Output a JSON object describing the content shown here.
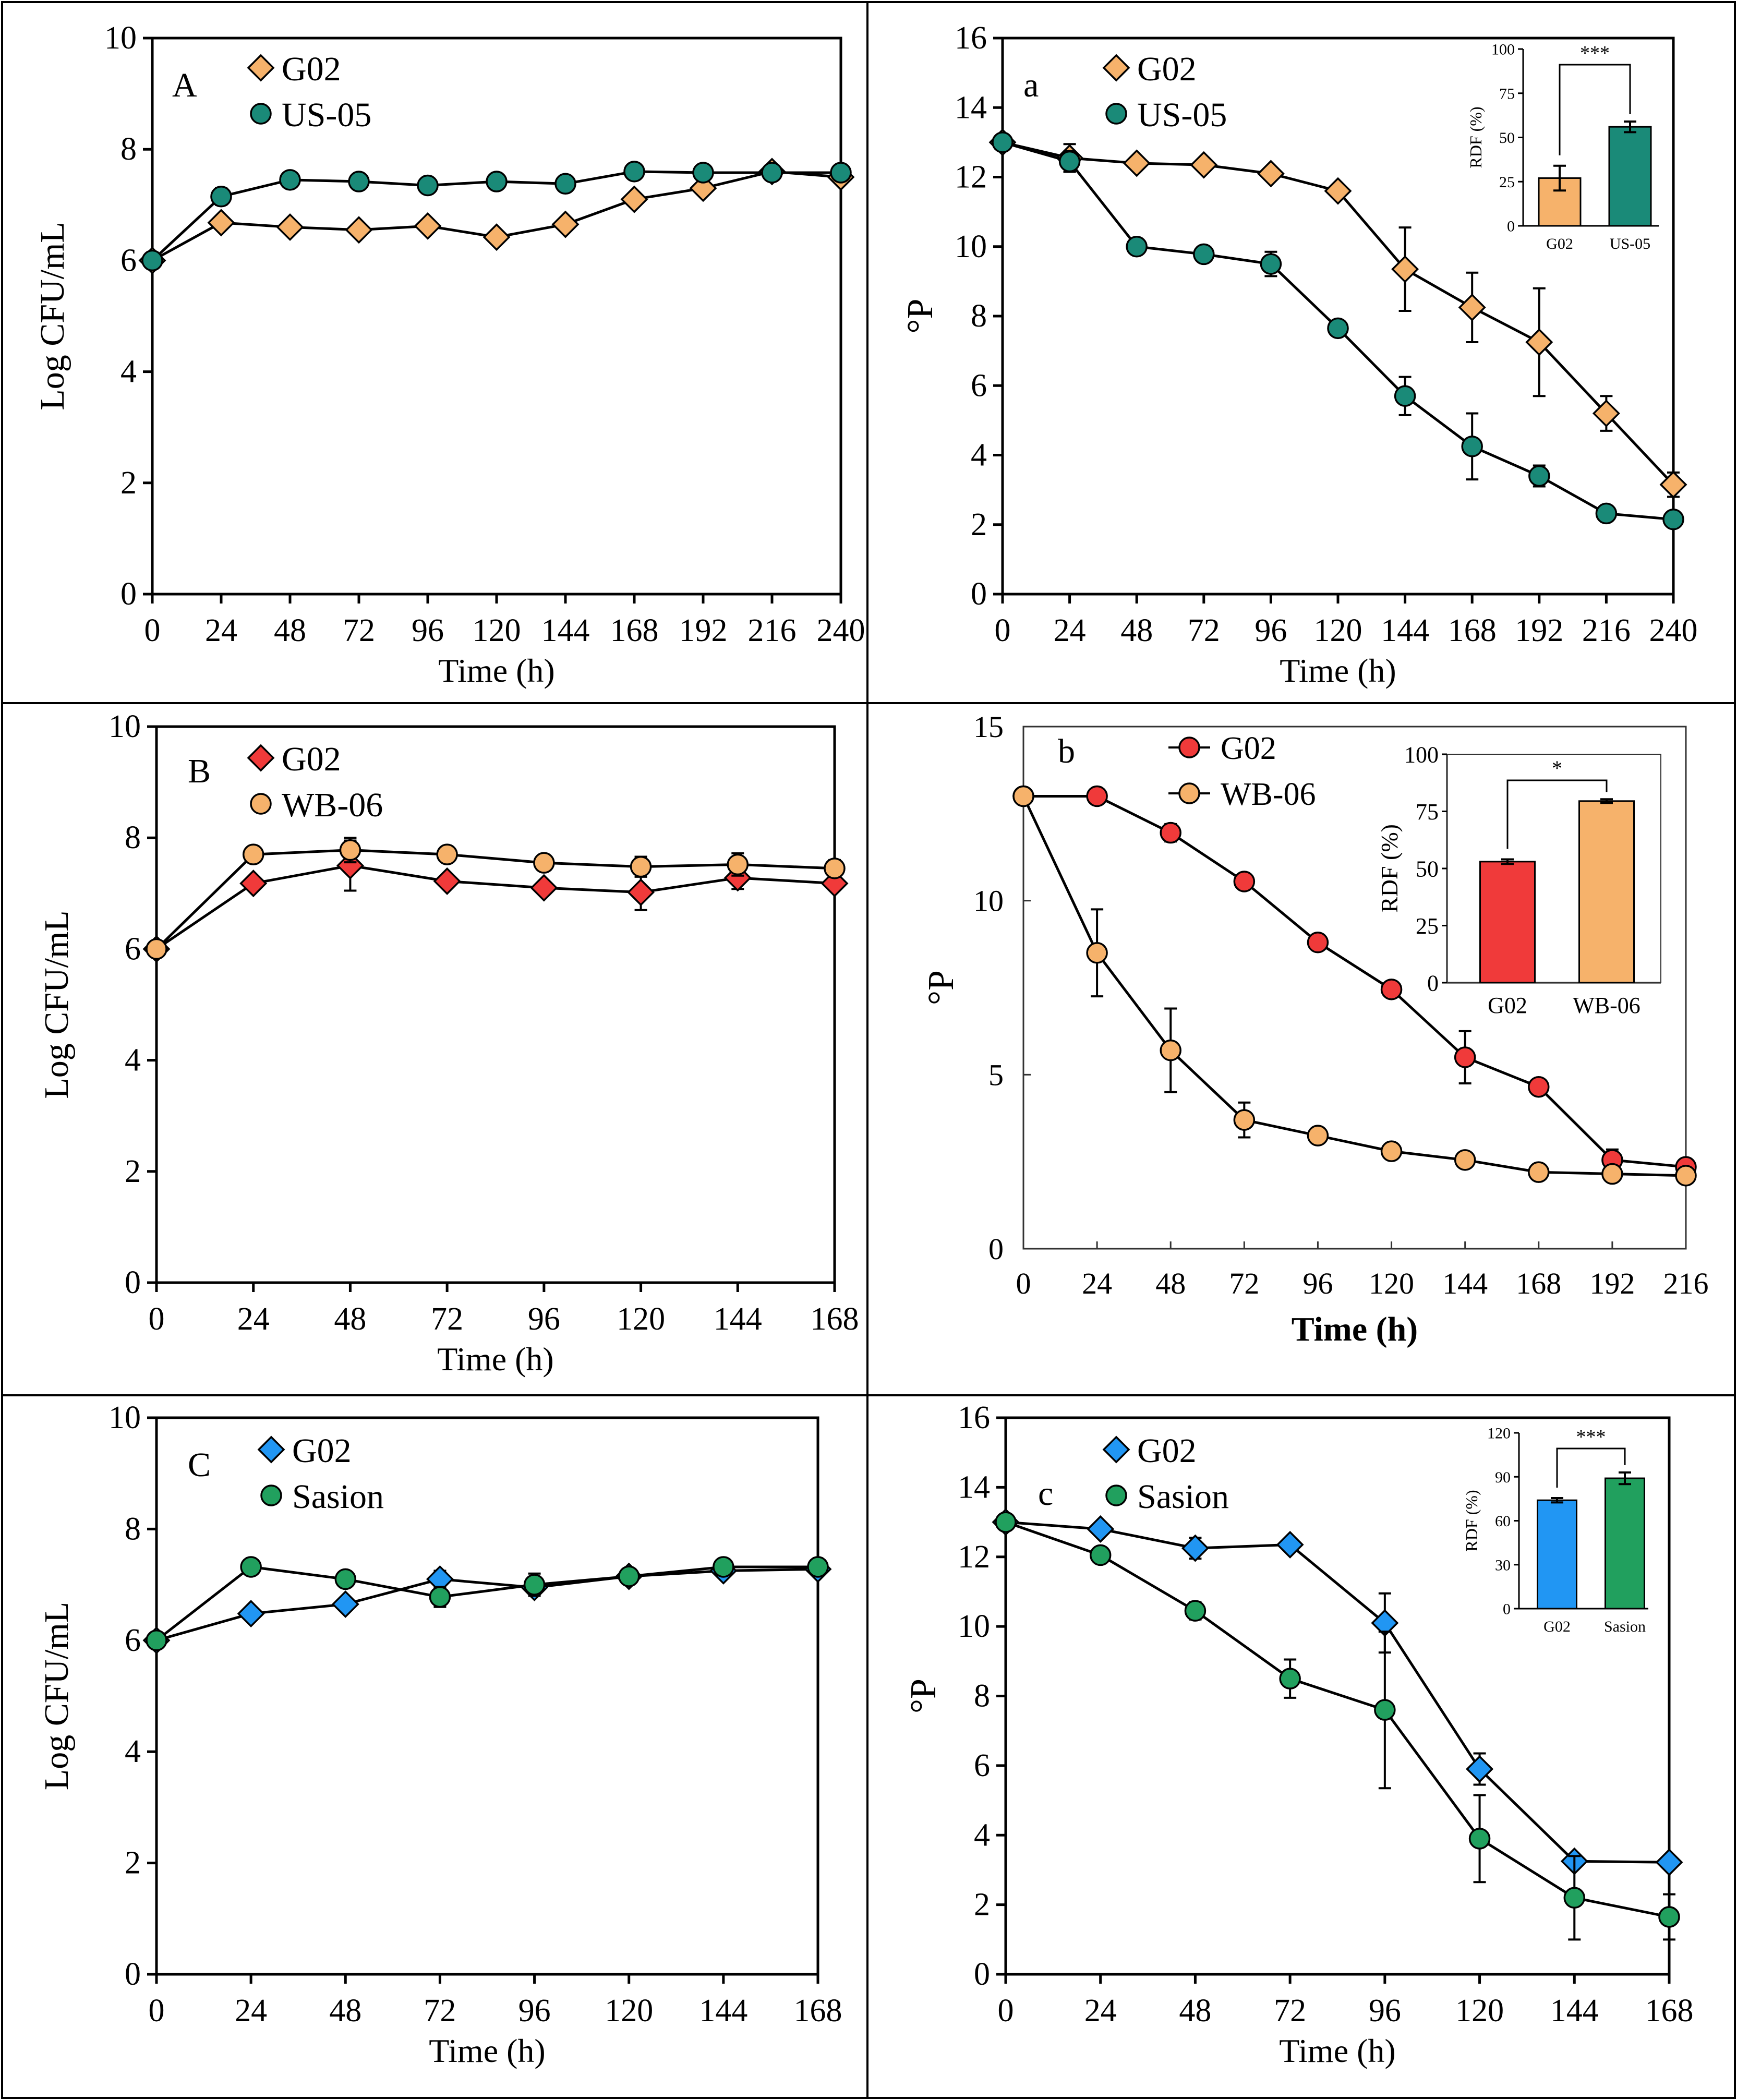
{
  "colors": {
    "orange": "#f6b26b",
    "teal": "#1a8a78",
    "red": "#f03a3a",
    "blue": "#2196f3",
    "green": "#21a05e",
    "line": "#000000"
  },
  "chart_data": [
    {
      "id": "A",
      "type": "line",
      "panel_label": "A",
      "ylabel": "Log CFU/mL",
      "xlabel": "Time (h)",
      "xlim": [
        0,
        240
      ],
      "ylim": [
        0,
        10
      ],
      "xticks": [
        "0",
        "24",
        "48",
        "72",
        "96",
        "120",
        "144",
        "168",
        "192",
        "216",
        "240"
      ],
      "yticks": [
        "0",
        "2",
        "4",
        "6",
        "8",
        "10"
      ],
      "series": [
        {
          "name": "G02",
          "marker": "diamond",
          "color": "#f6b26b",
          "x": [
            0,
            24,
            48,
            72,
            96,
            120,
            144,
            168,
            192,
            216,
            240
          ],
          "y": [
            6.0,
            6.68,
            6.6,
            6.55,
            6.62,
            6.42,
            6.65,
            7.1,
            7.3,
            7.6,
            7.5
          ],
          "err": [
            0,
            0,
            0.12,
            0,
            0,
            0,
            0,
            0,
            0,
            0,
            0
          ]
        },
        {
          "name": "US-05",
          "marker": "circle",
          "color": "#1a8a78",
          "x": [
            0,
            24,
            48,
            72,
            96,
            120,
            144,
            168,
            192,
            216,
            240
          ],
          "y": [
            6.0,
            7.15,
            7.45,
            7.42,
            7.35,
            7.42,
            7.38,
            7.6,
            7.58,
            7.58,
            7.58
          ],
          "err": [
            0,
            0.15,
            0,
            0,
            0,
            0,
            0,
            0,
            0,
            0,
            0
          ]
        }
      ]
    },
    {
      "id": "a",
      "type": "line",
      "panel_label": "a",
      "ylabel": "°P",
      "xlabel": "Time (h)",
      "xlim": [
        0,
        240
      ],
      "ylim": [
        0,
        16
      ],
      "xticks": [
        "0",
        "24",
        "48",
        "72",
        "96",
        "120",
        "144",
        "168",
        "192",
        "216",
        "240"
      ],
      "yticks": [
        "0",
        "2",
        "4",
        "6",
        "8",
        "10",
        "12",
        "14",
        "16"
      ],
      "series": [
        {
          "name": "G02",
          "marker": "diamond",
          "color": "#f6b26b",
          "x": [
            0,
            24,
            48,
            72,
            96,
            120,
            144,
            168,
            192,
            216,
            240
          ],
          "y": [
            13.0,
            12.55,
            12.4,
            12.35,
            12.1,
            11.6,
            9.35,
            8.25,
            7.25,
            5.2,
            3.15
          ],
          "err": [
            0,
            0.4,
            0,
            0,
            0,
            0,
            1.2,
            1.0,
            1.55,
            0.5,
            0.35
          ]
        },
        {
          "name": "US-05",
          "marker": "circle",
          "color": "#1a8a78",
          "x": [
            0,
            24,
            48,
            72,
            96,
            120,
            144,
            168,
            192,
            216,
            240
          ],
          "y": [
            13.0,
            12.45,
            10.0,
            9.78,
            9.5,
            7.65,
            5.7,
            4.25,
            3.4,
            2.32,
            2.15
          ],
          "err": [
            0,
            0.3,
            0,
            0,
            0.35,
            0,
            0.55,
            0.95,
            0.3,
            0,
            0
          ]
        }
      ],
      "inset": {
        "type": "bar",
        "ylabel": "RDF (%)",
        "categories": [
          "G02",
          "US-05"
        ],
        "values": [
          27,
          56
        ],
        "err": [
          7,
          3
        ],
        "ylim": [
          0,
          100
        ],
        "yticks": [
          "0",
          "25",
          "50",
          "75",
          "100"
        ],
        "significance": "***",
        "colors": [
          "#f6b26b",
          "#1a8a78"
        ]
      }
    },
    {
      "id": "B",
      "type": "line",
      "panel_label": "B",
      "ylabel": "Log CFU/mL",
      "xlabel": "Time (h)",
      "xlim": [
        0,
        168
      ],
      "ylim": [
        0,
        10
      ],
      "xticks": [
        "0",
        "24",
        "48",
        "72",
        "96",
        "120",
        "144",
        "168"
      ],
      "yticks": [
        "0",
        "2",
        "4",
        "6",
        "8",
        "10"
      ],
      "series": [
        {
          "name": "G02",
          "marker": "diamond",
          "color": "#f03a3a",
          "x": [
            0,
            24,
            48,
            72,
            96,
            120,
            144,
            168
          ],
          "y": [
            6.0,
            7.18,
            7.5,
            7.22,
            7.1,
            7.02,
            7.28,
            7.18
          ],
          "err": [
            0,
            0,
            0.45,
            0,
            0,
            0.32,
            0.2,
            0
          ]
        },
        {
          "name": "WB-06",
          "marker": "circle",
          "color": "#f6b26b",
          "x": [
            0,
            24,
            48,
            72,
            96,
            120,
            144,
            168
          ],
          "y": [
            6.0,
            7.7,
            7.78,
            7.7,
            7.55,
            7.48,
            7.52,
            7.45
          ],
          "err": [
            0,
            0,
            0.22,
            0,
            0,
            0.18,
            0.2,
            0.15
          ]
        }
      ]
    },
    {
      "id": "b",
      "type": "line",
      "panel_label": "b",
      "ylabel": "°P",
      "xlabel": "Time (h)",
      "xlim": [
        0,
        216
      ],
      "ylim": [
        0,
        15
      ],
      "xticks": [
        "0",
        "24",
        "48",
        "72",
        "96",
        "120",
        "144",
        "168",
        "192",
        "216"
      ],
      "yticks": [
        "0",
        "5",
        "10",
        "15"
      ],
      "series": [
        {
          "name": "G02",
          "marker": "circle",
          "color": "#f03a3a",
          "x": [
            0,
            24,
            48,
            72,
            96,
            120,
            144,
            168,
            192,
            216
          ],
          "y": [
            13.0,
            13.0,
            11.95,
            10.55,
            8.8,
            7.45,
            5.5,
            4.65,
            2.55,
            2.35
          ],
          "err": [
            0,
            0,
            0.25,
            0,
            0,
            0,
            0.75,
            0,
            0.3,
            0
          ]
        },
        {
          "name": "WB-06",
          "marker": "circle",
          "color": "#f6b26b",
          "x": [
            0,
            24,
            48,
            72,
            96,
            120,
            144,
            168,
            192,
            216
          ],
          "y": [
            13.0,
            8.5,
            5.7,
            3.7,
            3.25,
            2.8,
            2.55,
            2.2,
            2.15,
            2.1
          ],
          "err": [
            0,
            1.25,
            1.2,
            0.5,
            0,
            0,
            0,
            0,
            0,
            0
          ]
        }
      ],
      "inset": {
        "type": "bar",
        "ylabel": "RDF  (%)",
        "categories": [
          "G02",
          "WB-06"
        ],
        "values": [
          53,
          79.5
        ],
        "err": [
          1,
          0.8
        ],
        "ylim": [
          0,
          100
        ],
        "yticks": [
          "0",
          "25",
          "50",
          "75",
          "100"
        ],
        "significance": "*",
        "colors": [
          "#f03a3a",
          "#f6b26b"
        ]
      }
    },
    {
      "id": "C",
      "type": "line",
      "panel_label": "C",
      "ylabel": "Log CFU/mL",
      "xlabel": "Time (h)",
      "xlim": [
        0,
        168
      ],
      "ylim": [
        0,
        10
      ],
      "xticks": [
        "0",
        "24",
        "48",
        "72",
        "96",
        "120",
        "144",
        "168"
      ],
      "yticks": [
        "0",
        "2",
        "4",
        "6",
        "8",
        "10"
      ],
      "series": [
        {
          "name": "G02",
          "marker": "diamond",
          "color": "#2196f3",
          "x": [
            0,
            24,
            48,
            72,
            96,
            120,
            144,
            168
          ],
          "y": [
            6.0,
            6.48,
            6.65,
            7.1,
            6.95,
            7.15,
            7.25,
            7.28
          ],
          "err": [
            0,
            0,
            0,
            0.15,
            0.12,
            0.1,
            0,
            0
          ]
        },
        {
          "name": "Sasion",
          "marker": "circle",
          "color": "#21a05e",
          "x": [
            0,
            24,
            48,
            72,
            96,
            120,
            144,
            168
          ],
          "y": [
            6.0,
            7.32,
            7.1,
            6.78,
            7.0,
            7.15,
            7.32,
            7.32
          ],
          "err": [
            0,
            0,
            0,
            0.18,
            0.2,
            0,
            0,
            0
          ]
        }
      ]
    },
    {
      "id": "c",
      "type": "line",
      "panel_label": "c",
      "ylabel": "°P",
      "xlabel": "Time (h)",
      "xlim": [
        0,
        168
      ],
      "ylim": [
        0,
        16
      ],
      "xticks": [
        "0",
        "24",
        "48",
        "72",
        "96",
        "120",
        "144",
        "168"
      ],
      "yticks": [
        "0",
        "2",
        "4",
        "6",
        "8",
        "10",
        "12",
        "14",
        "16"
      ],
      "series": [
        {
          "name": "G02",
          "marker": "diamond",
          "color": "#2196f3",
          "x": [
            0,
            24,
            48,
            72,
            96,
            120,
            144,
            168
          ],
          "y": [
            13.0,
            12.8,
            12.25,
            12.35,
            10.1,
            5.9,
            3.25,
            3.22
          ],
          "err": [
            0,
            0,
            0.3,
            0,
            0.85,
            0.45,
            0,
            0
          ]
        },
        {
          "name": "Sasion",
          "marker": "circle",
          "color": "#21a05e",
          "x": [
            0,
            24,
            48,
            72,
            96,
            120,
            144,
            168
          ],
          "y": [
            13.0,
            12.05,
            10.45,
            8.5,
            7.6,
            3.9,
            2.2,
            1.65
          ],
          "err": [
            0,
            0,
            0.25,
            0.55,
            2.25,
            1.25,
            1.2,
            0.65
          ]
        }
      ],
      "inset": {
        "type": "bar",
        "ylabel": "RDF (%)",
        "categories": [
          "G02",
          "Sasion"
        ],
        "values": [
          74,
          89
        ],
        "err": [
          1.5,
          4
        ],
        "ylim": [
          0,
          120
        ],
        "yticks": [
          "0",
          "30",
          "60",
          "90",
          "120"
        ],
        "significance": "***",
        "colors": [
          "#2196f3",
          "#21a05e"
        ]
      }
    }
  ]
}
